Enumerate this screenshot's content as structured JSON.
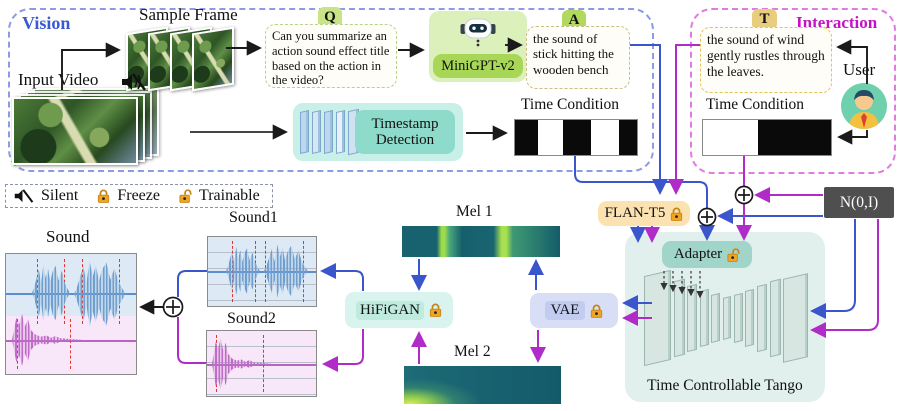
{
  "vision": {
    "label": "Vision",
    "sample_frame": "Sample Frame",
    "input_video": "Input Video",
    "q_badge": "Q",
    "question": "Can you summarize  an action sound effect title based on the action in the video?",
    "minigpt": "MiniGPT-v2",
    "a_badge": "A",
    "answer": "the sound of stick hitting the wooden bench",
    "timestamp": "Timestamp Detection",
    "time_condition": "Time Condition"
  },
  "interaction": {
    "label": "Interaction",
    "t_badge": "T",
    "text": "the sound of wind gently rustles through the leaves.",
    "user": "User",
    "time_condition": "Time Condition"
  },
  "legend": {
    "silent": "Silent",
    "freeze": "Freeze",
    "trainable": "Trainable"
  },
  "core": {
    "flan": "FLAN-T5",
    "noise": "N(0,I)",
    "adapter": "Adapter",
    "tct": "Time Controllable Tango",
    "vae": "VAE",
    "hifigan": "HiFiGAN",
    "mel1": "Mel 1",
    "mel2": "Mel 2"
  },
  "outputs": {
    "sound": "Sound",
    "sound1": "Sound1",
    "sound2": "Sound2"
  },
  "time_conditions": {
    "vision": [
      {
        "color": "black",
        "frac": 0.19
      },
      {
        "color": "white",
        "frac": 0.2
      },
      {
        "color": "black",
        "frac": 0.235
      },
      {
        "color": "white",
        "frac": 0.228
      },
      {
        "color": "black",
        "frac": 0.147
      }
    ],
    "interaction": [
      {
        "color": "white",
        "frac": 0.43
      },
      {
        "color": "black",
        "frac": 0.57
      }
    ]
  },
  "colors": {
    "arrow_blue": "#3b55cc",
    "arrow_magenta": "#b02cc8",
    "vision_border": "#8b9ce6",
    "interaction_border": "#e07ce0",
    "vision_label": "#3a5bd0",
    "interaction_label": "#c413c4",
    "flan_bg": "#fbe2b0",
    "noise_bg": "#4f4f4f",
    "adapter_bg": "#a2d5c9",
    "tct_bg": "#e2f0ed",
    "hifigan_bg": "#d9f4ee",
    "vae_bg": "#d8def6",
    "minigpt_pill": "#a8d757",
    "q_badge_bg": "#c9e387",
    "a_badge_bg": "#b1d95e",
    "t_badge_bg": "#e9cd7e",
    "lock": "#f0a423"
  }
}
